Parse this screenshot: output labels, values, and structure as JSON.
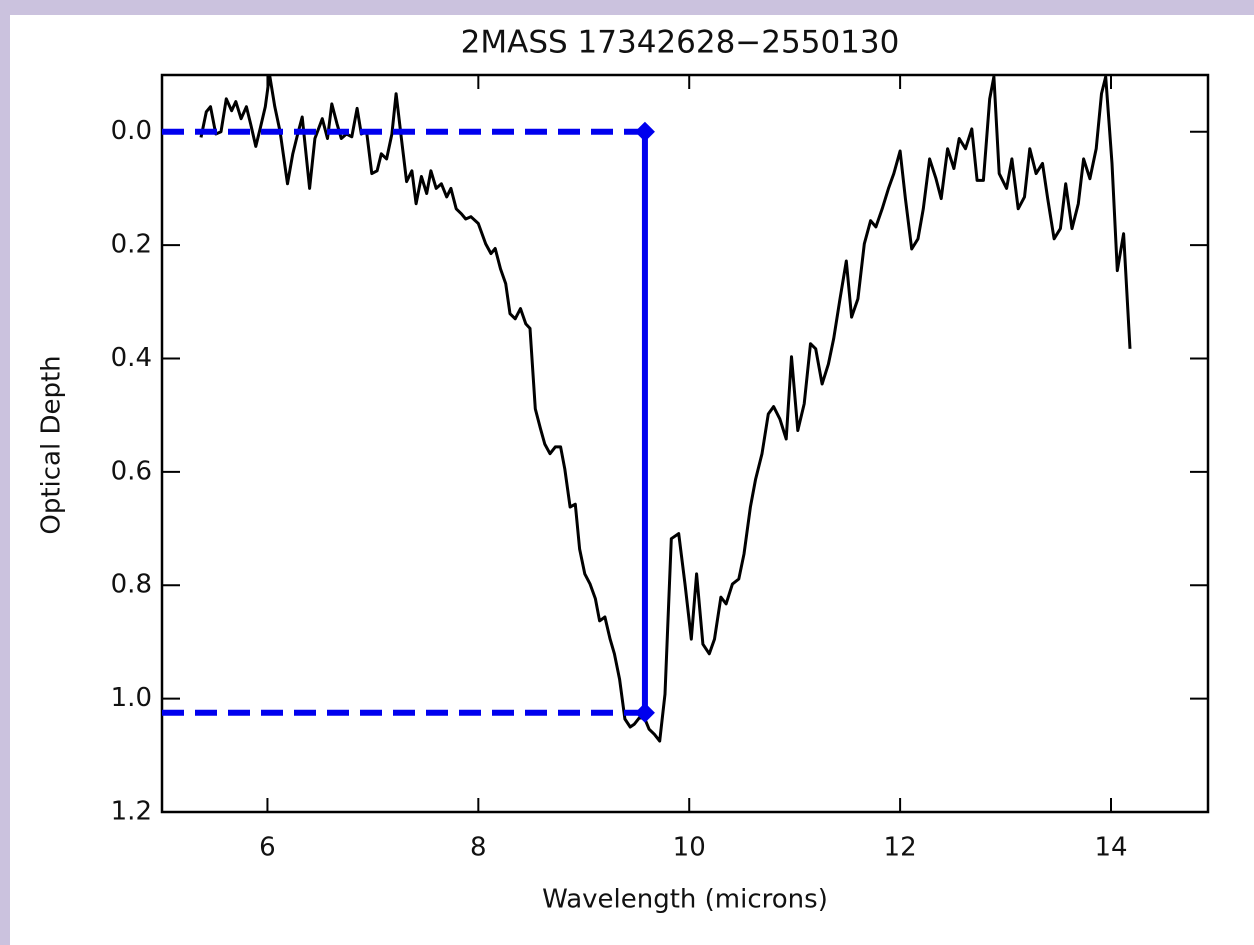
{
  "chart_data": {
    "type": "line",
    "title": "2MASS 17342628−2550130",
    "x_label": "Wavelength (microns)",
    "y_label": "Optical Depth",
    "xlim": [
      5,
      14.92
    ],
    "xticks": [
      6,
      8,
      10,
      12,
      14
    ],
    "ylim": [
      -0.1,
      1.2
    ],
    "y_inverted": true,
    "yticks": [
      {
        "value": 0,
        "label": "0.0"
      },
      0.2,
      0.4,
      0.6,
      0.8,
      {
        "value": 1,
        "label": "1.0"
      },
      1.2
    ],
    "series": [
      {
        "color": "#000000",
        "x": [
          5.37,
          5.42,
          5.46,
          5.51,
          5.56,
          5.61,
          5.66,
          5.7,
          5.75,
          5.8,
          5.84,
          5.89,
          5.93,
          5.98,
          6.02,
          6.07,
          6.12,
          6.19,
          6.24,
          6.28,
          6.33,
          6.4,
          6.45,
          6.52,
          6.57,
          6.61,
          6.66,
          6.7,
          6.75,
          6.8,
          6.85,
          6.89,
          6.94,
          6.99,
          7.04,
          7.08,
          7.13,
          7.18,
          7.22,
          7.27,
          7.32,
          7.37,
          7.41,
          7.46,
          7.51,
          7.55,
          7.6,
          7.65,
          7.7,
          7.74,
          7.79,
          7.84,
          7.88,
          7.93,
          8.0,
          8.07,
          8.12,
          8.16,
          8.21,
          8.26,
          8.3,
          8.35,
          8.4,
          8.45,
          8.49,
          8.54,
          8.59,
          8.63,
          8.68,
          8.73,
          8.78,
          8.82,
          8.87,
          8.92,
          8.96,
          9.01,
          9.06,
          9.11,
          9.15,
          9.2,
          9.25,
          9.29,
          9.34,
          9.39,
          9.44,
          9.48,
          9.53,
          9.58,
          9.62,
          9.67,
          9.72,
          9.77,
          9.83,
          9.9,
          9.96,
          10.02,
          10.07,
          10.13,
          10.19,
          10.24,
          10.3,
          10.35,
          10.41,
          10.47,
          10.52,
          10.58,
          10.63,
          10.69,
          10.75,
          10.8,
          10.86,
          10.92,
          10.97,
          11.03,
          11.09,
          11.15,
          11.2,
          11.26,
          11.32,
          11.37,
          11.43,
          11.49,
          11.54,
          11.6,
          11.66,
          11.72,
          11.77,
          11.83,
          11.89,
          11.94,
          12.0,
          12.05,
          12.11,
          12.17,
          12.22,
          12.28,
          12.34,
          12.39,
          12.45,
          12.51,
          12.56,
          12.62,
          12.68,
          12.73,
          12.79,
          12.85,
          12.89,
          12.94,
          13.01,
          13.06,
          13.12,
          13.18,
          13.23,
          13.29,
          13.35,
          13.4,
          13.46,
          13.52,
          13.57,
          13.63,
          13.69,
          13.74,
          13.8,
          13.86,
          13.91,
          13.95,
          14.01,
          14.06,
          14.12,
          14.18
        ],
        "values": [
          0.01,
          -0.035,
          -0.044,
          0.004,
          0.0,
          -0.058,
          -0.037,
          -0.053,
          -0.023,
          -0.044,
          -0.014,
          0.026,
          -0.005,
          -0.044,
          -0.1,
          -0.044,
          0.0,
          0.092,
          0.039,
          0.009,
          -0.026,
          0.1,
          0.012,
          -0.023,
          0.012,
          -0.049,
          -0.014,
          0.012,
          0.004,
          0.009,
          -0.041,
          0.004,
          0.0,
          0.074,
          0.069,
          0.039,
          0.048,
          0.004,
          -0.067,
          0.012,
          0.088,
          0.069,
          0.127,
          0.079,
          0.109,
          0.069,
          0.1,
          0.092,
          0.115,
          0.1,
          0.136,
          0.145,
          0.154,
          0.15,
          0.162,
          0.198,
          0.215,
          0.206,
          0.242,
          0.268,
          0.321,
          0.33,
          0.312,
          0.339,
          0.347,
          0.489,
          0.524,
          0.551,
          0.568,
          0.556,
          0.556,
          0.595,
          0.662,
          0.657,
          0.736,
          0.78,
          0.798,
          0.824,
          0.863,
          0.856,
          0.895,
          0.921,
          0.966,
          1.036,
          1.05,
          1.045,
          1.033,
          1.036,
          1.054,
          1.063,
          1.075,
          0.992,
          0.718,
          0.709,
          0.798,
          0.895,
          0.78,
          0.904,
          0.921,
          0.895,
          0.821,
          0.833,
          0.798,
          0.789,
          0.745,
          0.662,
          0.613,
          0.568,
          0.498,
          0.485,
          0.507,
          0.542,
          0.397,
          0.527,
          0.48,
          0.374,
          0.383,
          0.445,
          0.41,
          0.365,
          0.295,
          0.228,
          0.327,
          0.295,
          0.198,
          0.157,
          0.168,
          0.136,
          0.1,
          0.074,
          0.034,
          0.118,
          0.207,
          0.189,
          0.136,
          0.048,
          0.083,
          0.118,
          0.03,
          0.065,
          0.012,
          0.03,
          -0.005,
          0.086,
          0.086,
          -0.058,
          -0.097,
          0.074,
          0.1,
          0.048,
          0.136,
          0.115,
          0.03,
          0.074,
          0.056,
          0.118,
          0.189,
          0.171,
          0.092,
          0.171,
          0.127,
          0.048,
          0.083,
          0.03,
          -0.067,
          -0.097,
          0.056,
          0.245,
          0.18,
          0.383
        ]
      }
    ],
    "depth_marker": {
      "x": 9.58,
      "y": [
        0,
        1.025
      ],
      "color": "#0000ee"
    }
  }
}
